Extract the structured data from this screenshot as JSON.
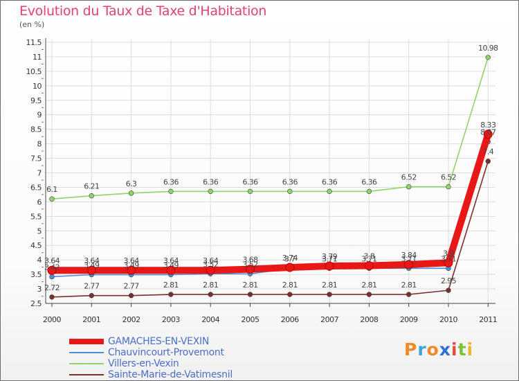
{
  "title": "Evolution du Taux de Taxe d'Habitation",
  "subtitle": "(en %)",
  "logo": {
    "letters": [
      "P",
      "r",
      "o",
      "x",
      "i",
      "t",
      "i"
    ],
    "colors": [
      "#f08a2a",
      "#3aa8d8",
      "#f08a2a",
      "#2f6fd0",
      "#e24b3c",
      "#7fbf3a",
      "#f0b52a"
    ]
  },
  "chart_data": {
    "type": "line",
    "title": "Evolution du Taux de Taxe d'Habitation",
    "ylabel": "(en %)",
    "xlabel": "",
    "ylim": [
      2.5,
      11.5
    ],
    "yticks": [
      "2.5",
      "3",
      "3.5",
      "4",
      "4.5",
      "5",
      "5.5",
      "6",
      "6.5",
      "7",
      "7.5",
      "8",
      "8.5",
      "9",
      "9.5",
      "10",
      "10.5",
      "11",
      "11.5"
    ],
    "categories": [
      "2000",
      "2001",
      "2002",
      "2003",
      "2004",
      "2005",
      "2006",
      "2007",
      "2008",
      "2009",
      "2010",
      "2011"
    ],
    "series": [
      {
        "name": "Villers-en-Vexin",
        "color": "#8fd36a",
        "values": [
          6.1,
          6.21,
          6.3,
          6.36,
          6.36,
          6.36,
          6.36,
          6.36,
          6.36,
          6.52,
          6.52,
          10.98
        ],
        "labels": [
          "6.1",
          "6.21",
          "6.3",
          "6.36",
          "6.36",
          "6.36",
          "6.36",
          "6.36",
          "6.36",
          "6.52",
          "6.52",
          "10.98"
        ]
      },
      {
        "name": "Sainte-Marie-de-Vatimesnil",
        "color": "#7a2e2e",
        "values": [
          2.72,
          2.77,
          2.77,
          2.81,
          2.81,
          2.81,
          2.81,
          2.81,
          2.81,
          2.81,
          2.95,
          7.4
        ],
        "labels": [
          "2.72",
          "2.77",
          "2.77",
          "2.81",
          "2.81",
          "2.81",
          "2.81",
          "2.81",
          "2.81",
          "2.81",
          "2.95",
          "7.4"
        ]
      },
      {
        "name": "Chauvincourt-Provemont",
        "color": "#4a8ed8",
        "values": [
          3.42,
          3.49,
          3.49,
          3.49,
          3.52,
          3.52,
          3.7,
          3.71,
          3.71,
          3.71,
          3.71,
          8.07
        ],
        "labels": [
          "3.42",
          "3.49",
          "3.49",
          "3.49",
          "3.52",
          "3.52",
          "3.7",
          "3.71",
          "3.71",
          "3.71",
          "3.71",
          "8.07"
        ]
      },
      {
        "name": "GAMACHES-EN-VEXIN",
        "color": "#e81818",
        "values": [
          3.64,
          3.64,
          3.64,
          3.64,
          3.64,
          3.68,
          3.74,
          3.79,
          3.8,
          3.84,
          3.9,
          8.33
        ],
        "labels": [
          "3.64",
          "3.64",
          "3.64",
          "3.64",
          "3.64",
          "3.68",
          "3.74",
          "3.79",
          "3.8",
          "3.84",
          "3.9",
          "8.33"
        ]
      }
    ],
    "legend": [
      "GAMACHES-EN-VEXIN",
      "Chauvincourt-Provemont",
      "Villers-en-Vexin",
      "Sainte-Marie-de-Vatimesnil"
    ]
  }
}
